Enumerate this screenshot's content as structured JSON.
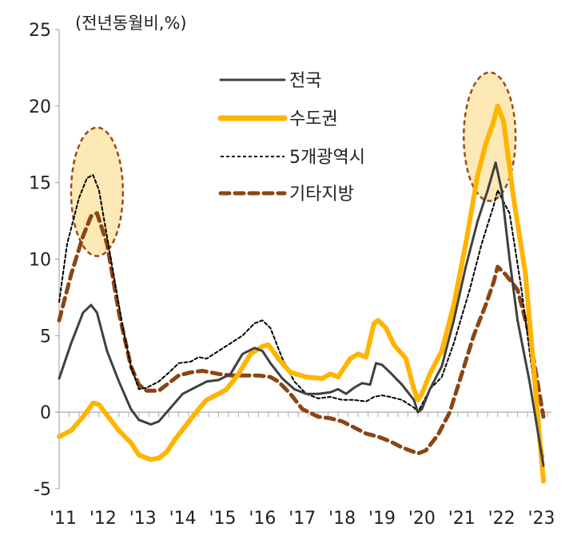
{
  "chart_data": {
    "type": "line",
    "unit_label": "(전년동월비,%)",
    "ylim": [
      -5,
      25
    ],
    "yticks": [
      -5,
      0,
      5,
      10,
      15,
      20,
      25
    ],
    "xlim": [
      2011,
      2023.35
    ],
    "xticks": [
      {
        "label": "'11",
        "x": 2011.1
      },
      {
        "label": "'12",
        "x": 2012.1
      },
      {
        "label": "'13",
        "x": 2013.1
      },
      {
        "label": "'14",
        "x": 2014.1
      },
      {
        "label": "'15",
        "x": 2015.1
      },
      {
        "label": "'16",
        "x": 2016.1
      },
      {
        "label": "'17",
        "x": 2017.1
      },
      {
        "label": "'18",
        "x": 2018.1
      },
      {
        "label": "'19",
        "x": 2019.1
      },
      {
        "label": "'20",
        "x": 2020.1
      },
      {
        "label": "'21",
        "x": 2021.1
      },
      {
        "label": "'22",
        "x": 2022.1
      },
      {
        "label": "'23",
        "x": 2023.1
      }
    ],
    "legend_position": "top-center",
    "series": [
      {
        "name": "전국",
        "color": "#404040",
        "style": "solid",
        "x": [
          2011.0,
          2011.3,
          2011.6,
          2011.8,
          2011.95,
          2012.2,
          2012.5,
          2012.8,
          2013.0,
          2013.3,
          2013.5,
          2013.8,
          2014.1,
          2014.4,
          2014.7,
          2015.0,
          2015.3,
          2015.6,
          2015.9,
          2016.1,
          2016.3,
          2016.6,
          2016.9,
          2017.2,
          2017.5,
          2017.8,
          2018.0,
          2018.2,
          2018.4,
          2018.6,
          2018.8,
          2018.95,
          2019.1,
          2019.3,
          2019.6,
          2019.9,
          2020.0,
          2020.1,
          2020.3,
          2020.6,
          2020.9,
          2021.2,
          2021.5,
          2021.75,
          2021.95,
          2022.1,
          2022.3,
          2022.5,
          2022.8,
          2023.15
        ],
        "y": [
          2.2,
          4.5,
          6.5,
          7.0,
          6.5,
          4.0,
          2.0,
          0.2,
          -0.5,
          -0.8,
          -0.6,
          0.3,
          1.2,
          1.6,
          2.0,
          2.1,
          2.5,
          3.8,
          4.2,
          4.0,
          3.2,
          2.2,
          1.5,
          1.2,
          1.2,
          1.3,
          1.5,
          1.2,
          1.6,
          1.9,
          1.8,
          3.2,
          3.1,
          2.6,
          1.8,
          0.8,
          0.0,
          0.2,
          1.5,
          3.0,
          6.0,
          9.5,
          12.5,
          14.5,
          16.3,
          14.5,
          10.0,
          6.0,
          2.0,
          -3.5
        ]
      },
      {
        "name": "수도권",
        "color": "#FFB400",
        "style": "solid",
        "x": [
          2011.0,
          2011.3,
          2011.6,
          2011.85,
          2012.0,
          2012.2,
          2012.5,
          2012.8,
          2013.0,
          2013.3,
          2013.5,
          2013.7,
          2013.9,
          2014.2,
          2014.5,
          2014.7,
          2015.0,
          2015.2,
          2015.5,
          2015.8,
          2016.1,
          2016.25,
          2016.5,
          2016.8,
          2017.2,
          2017.6,
          2017.8,
          2018.0,
          2018.3,
          2018.5,
          2018.7,
          2018.9,
          2019.0,
          2019.2,
          2019.4,
          2019.7,
          2019.9,
          2020.0,
          2020.1,
          2020.3,
          2020.6,
          2020.9,
          2021.2,
          2021.5,
          2021.7,
          2021.9,
          2022.0,
          2022.15,
          2022.4,
          2022.7,
          2023.15
        ],
        "y": [
          -1.6,
          -1.2,
          -0.3,
          0.6,
          0.5,
          -0.2,
          -1.2,
          -2.0,
          -2.8,
          -3.1,
          -3.0,
          -2.6,
          -1.8,
          -0.8,
          0.2,
          0.8,
          1.2,
          1.5,
          2.5,
          3.8,
          4.3,
          4.4,
          3.5,
          2.6,
          2.3,
          2.2,
          2.5,
          2.3,
          3.5,
          3.8,
          3.6,
          5.8,
          6.0,
          5.5,
          4.4,
          3.5,
          1.5,
          0.8,
          1.2,
          2.5,
          4.0,
          7.0,
          11.0,
          15.5,
          17.5,
          19.0,
          20.0,
          19.0,
          14.0,
          9.0,
          -4.5
        ]
      },
      {
        "name": "5개광역시",
        "color": "#000000",
        "style": "dotted",
        "x": [
          2011.0,
          2011.2,
          2011.5,
          2011.7,
          2011.85,
          2012.0,
          2012.3,
          2012.6,
          2012.8,
          2013.0,
          2013.2,
          2013.5,
          2013.8,
          2014.0,
          2014.3,
          2014.5,
          2014.7,
          2015.0,
          2015.3,
          2015.6,
          2015.9,
          2016.1,
          2016.3,
          2016.6,
          2016.9,
          2017.2,
          2017.5,
          2017.8,
          2018.1,
          2018.4,
          2018.7,
          2018.9,
          2019.1,
          2019.3,
          2019.6,
          2019.9,
          2020.0,
          2020.1,
          2020.3,
          2020.6,
          2020.9,
          2021.3,
          2021.6,
          2021.9,
          2022.0,
          2022.3,
          2022.6,
          2023.15
        ],
        "y": [
          7.2,
          11.0,
          14.0,
          15.3,
          15.5,
          14.5,
          10.0,
          5.5,
          3.0,
          1.5,
          1.6,
          2.0,
          2.7,
          3.2,
          3.3,
          3.6,
          3.5,
          4.0,
          4.5,
          5.0,
          5.8,
          6.0,
          5.5,
          3.5,
          2.0,
          1.2,
          0.9,
          1.0,
          0.8,
          0.8,
          0.7,
          1.0,
          1.1,
          1.0,
          0.8,
          0.3,
          0.0,
          0.5,
          1.5,
          2.3,
          4.5,
          8.0,
          11.0,
          13.5,
          14.5,
          13.0,
          8.0,
          -3.0
        ]
      },
      {
        "name": "기타지방",
        "color": "#8B4513",
        "style": "dashed",
        "x": [
          2011.0,
          2011.3,
          2011.6,
          2011.8,
          2011.95,
          2012.2,
          2012.5,
          2012.8,
          2013.0,
          2013.2,
          2013.5,
          2013.8,
          2014.0,
          2014.3,
          2014.6,
          2014.8,
          2015.0,
          2015.3,
          2015.7,
          2016.0,
          2016.3,
          2016.5,
          2016.8,
          2017.1,
          2017.5,
          2017.8,
          2018.1,
          2018.4,
          2018.7,
          2019.0,
          2019.3,
          2019.6,
          2019.9,
          2020.0,
          2020.2,
          2020.5,
          2020.8,
          2021.1,
          2021.4,
          2021.7,
          2021.9,
          2022.0,
          2022.2,
          2022.5,
          2022.8,
          2023.15
        ],
        "y": [
          6.0,
          9.0,
          11.5,
          12.8,
          13.0,
          11.0,
          6.5,
          3.0,
          1.8,
          1.4,
          1.4,
          2.0,
          2.4,
          2.6,
          2.7,
          2.6,
          2.5,
          2.4,
          2.4,
          2.4,
          2.3,
          2.0,
          1.2,
          0.2,
          -0.3,
          -0.4,
          -0.6,
          -1.0,
          -1.4,
          -1.6,
          -1.9,
          -2.3,
          -2.6,
          -2.7,
          -2.5,
          -1.5,
          0.0,
          2.5,
          5.0,
          7.0,
          8.5,
          9.5,
          9.0,
          8.0,
          5.0,
          -0.3
        ]
      }
    ],
    "annotations": [
      {
        "type": "ellipse",
        "cx": 2011.95,
        "cy": 14.4,
        "rx": 0.65,
        "ry": 4.2
      },
      {
        "type": "ellipse",
        "cx": 2021.8,
        "cy": 18.0,
        "rx": 0.65,
        "ry": 4.2
      }
    ]
  }
}
